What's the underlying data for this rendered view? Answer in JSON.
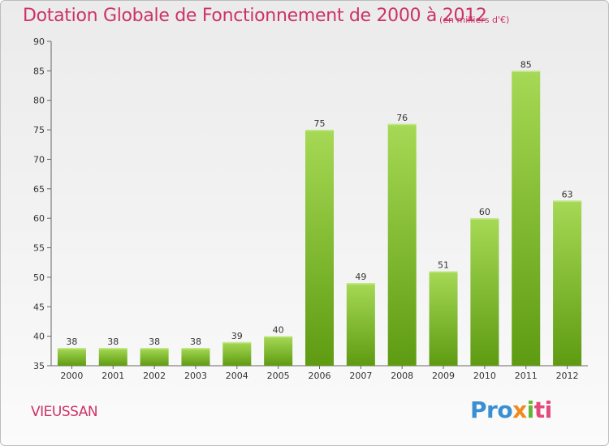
{
  "header": {
    "title": "Dotation Globale de Fonctionnement de 2000 à 2012",
    "unit": "(en milliers d'€)"
  },
  "footer": {
    "commune": "VIEUSSAN",
    "logo": [
      "Pro",
      "x",
      "i",
      "ti"
    ]
  },
  "colors": {
    "title": "#cc3366",
    "bar_light": "#a6d955",
    "bar_dark": "#5e9b12"
  },
  "chart_data": {
    "type": "bar",
    "title": "Dotation Globale de Fonctionnement de 2000 à 2012",
    "subtitle": "(en milliers d'€)",
    "xlabel": "",
    "ylabel": "",
    "categories": [
      "2000",
      "2001",
      "2002",
      "2003",
      "2004",
      "2005",
      "2006",
      "2007",
      "2008",
      "2009",
      "2010",
      "2011",
      "2012"
    ],
    "values": [
      38,
      38,
      38,
      38,
      39,
      40,
      75,
      49,
      76,
      51,
      60,
      85,
      63
    ],
    "ylim": [
      35,
      90
    ],
    "yticks": [
      35,
      40,
      45,
      50,
      55,
      60,
      65,
      70,
      75,
      80,
      85,
      90
    ],
    "grid": false,
    "legend": "none"
  }
}
